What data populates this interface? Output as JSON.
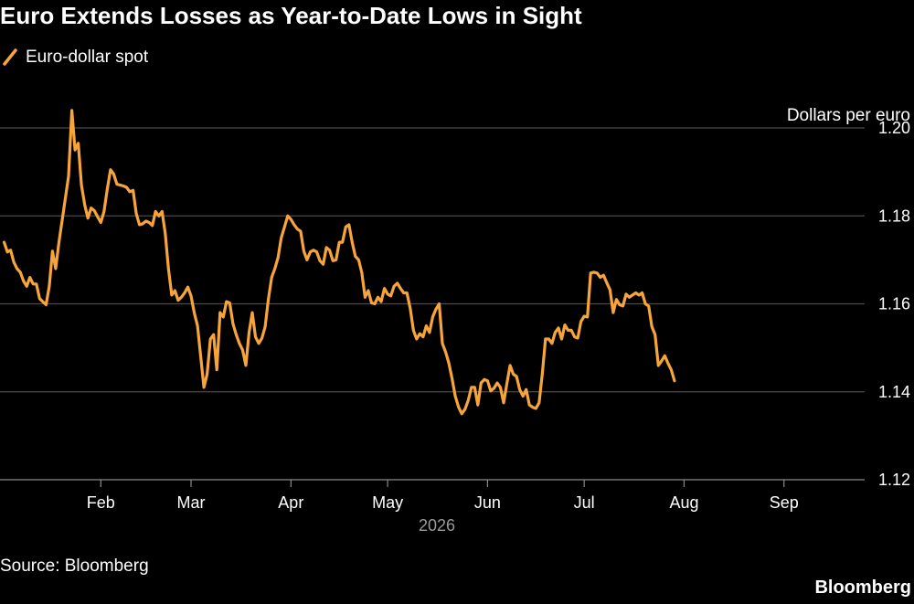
{
  "title": "Euro Extends Losses as Year-to-Date Lows in Sight",
  "source": "Source: Bloomberg",
  "brand": "Bloomberg",
  "colors": {
    "line": "#f7a53a",
    "grid": "#4a4a4a",
    "background": "#000000"
  },
  "chart_data": {
    "type": "line",
    "title": "Euro Extends Losses as Year-to-Date Lows in Sight",
    "ylabel": "Dollars per euro",
    "xlabel": "2026",
    "x_range": [
      "2026-01-01",
      "2026-09-30"
    ],
    "ylim": [
      1.12,
      1.2
    ],
    "yticks": [
      "1.20",
      "1.18",
      "1.16",
      "1.14",
      "1.12"
    ],
    "ytick_values": [
      1.2,
      1.18,
      1.16,
      1.14,
      1.12
    ],
    "xticks": [
      {
        "label": "Feb",
        "date": "2026-02-01"
      },
      {
        "label": "Mar",
        "date": "2026-03-01"
      },
      {
        "label": "Apr",
        "date": "2026-04-01"
      },
      {
        "label": "May",
        "date": "2026-05-01"
      },
      {
        "label": "Jun",
        "date": "2026-06-01"
      },
      {
        "label": "Jul",
        "date": "2026-07-01"
      },
      {
        "label": "Aug",
        "date": "2026-08-01"
      },
      {
        "label": "Sep",
        "date": "2026-09-01"
      }
    ],
    "grid": true,
    "legend_position": "top-left",
    "series": [
      {
        "name": "Euro-dollar spot",
        "color": "#f7a53a",
        "points": [
          [
            "2026-01-02",
            1.174
          ],
          [
            "2026-01-03",
            1.1718
          ],
          [
            "2026-01-04",
            1.1722
          ],
          [
            "2026-01-05",
            1.1695
          ],
          [
            "2026-01-06",
            1.168
          ],
          [
            "2026-01-07",
            1.1672
          ],
          [
            "2026-01-08",
            1.1652
          ],
          [
            "2026-01-09",
            1.164
          ],
          [
            "2026-01-10",
            1.166
          ],
          [
            "2026-01-11",
            1.1645
          ],
          [
            "2026-01-12",
            1.1645
          ],
          [
            "2026-01-13",
            1.1612
          ],
          [
            "2026-01-14",
            1.1605
          ],
          [
            "2026-01-15",
            1.1598
          ],
          [
            "2026-01-16",
            1.164
          ],
          [
            "2026-01-17",
            1.172
          ],
          [
            "2026-01-18",
            1.168
          ],
          [
            "2026-01-19",
            1.174
          ],
          [
            "2026-01-20",
            1.179
          ],
          [
            "2026-01-21",
            1.184
          ],
          [
            "2026-01-22",
            1.189
          ],
          [
            "2026-01-23",
            1.204
          ],
          [
            "2026-01-24",
            1.195
          ],
          [
            "2026-01-25",
            1.1965
          ],
          [
            "2026-01-26",
            1.187
          ],
          [
            "2026-01-27",
            1.1825
          ],
          [
            "2026-01-28",
            1.1795
          ],
          [
            "2026-01-29",
            1.1818
          ],
          [
            "2026-01-30",
            1.1812
          ],
          [
            "2026-01-31",
            1.1798
          ],
          [
            "2026-02-01",
            1.1785
          ],
          [
            "2026-02-02",
            1.181
          ],
          [
            "2026-02-03",
            1.186
          ],
          [
            "2026-02-04",
            1.1905
          ],
          [
            "2026-02-05",
            1.1895
          ],
          [
            "2026-02-06",
            1.1872
          ],
          [
            "2026-02-07",
            1.187
          ],
          [
            "2026-02-08",
            1.1868
          ],
          [
            "2026-02-09",
            1.1865
          ],
          [
            "2026-02-10",
            1.1855
          ],
          [
            "2026-02-11",
            1.1858
          ],
          [
            "2026-02-12",
            1.1805
          ],
          [
            "2026-02-13",
            1.178
          ],
          [
            "2026-02-14",
            1.1782
          ],
          [
            "2026-02-15",
            1.1788
          ],
          [
            "2026-02-16",
            1.1785
          ],
          [
            "2026-02-17",
            1.1778
          ],
          [
            "2026-02-18",
            1.181
          ],
          [
            "2026-02-19",
            1.18
          ],
          [
            "2026-02-20",
            1.181
          ],
          [
            "2026-02-21",
            1.176
          ],
          [
            "2026-02-22",
            1.168
          ],
          [
            "2026-02-23",
            1.162
          ],
          [
            "2026-02-24",
            1.163
          ],
          [
            "2026-02-25",
            1.1608
          ],
          [
            "2026-02-26",
            1.1615
          ],
          [
            "2026-02-27",
            1.1625
          ],
          [
            "2026-02-28",
            1.1638
          ],
          [
            "2026-03-01",
            1.1618
          ],
          [
            "2026-03-02",
            1.158
          ],
          [
            "2026-03-03",
            1.155
          ],
          [
            "2026-03-04",
            1.148
          ],
          [
            "2026-03-05",
            1.141
          ],
          [
            "2026-03-06",
            1.144
          ],
          [
            "2026-03-07",
            1.152
          ],
          [
            "2026-03-08",
            1.153
          ],
          [
            "2026-03-09",
            1.145
          ],
          [
            "2026-03-10",
            1.158
          ],
          [
            "2026-03-11",
            1.157
          ],
          [
            "2026-03-12",
            1.1605
          ],
          [
            "2026-03-13",
            1.1602
          ],
          [
            "2026-03-14",
            1.1555
          ],
          [
            "2026-03-15",
            1.153
          ],
          [
            "2026-03-16",
            1.151
          ],
          [
            "2026-03-17",
            1.1495
          ],
          [
            "2026-03-18",
            1.146
          ],
          [
            "2026-03-19",
            1.1535
          ],
          [
            "2026-03-20",
            1.158
          ],
          [
            "2026-03-21",
            1.1525
          ],
          [
            "2026-03-22",
            1.151
          ],
          [
            "2026-03-23",
            1.1522
          ],
          [
            "2026-03-24",
            1.1548
          ],
          [
            "2026-03-25",
            1.161
          ],
          [
            "2026-03-26",
            1.166
          ],
          [
            "2026-03-27",
            1.168
          ],
          [
            "2026-03-28",
            1.1705
          ],
          [
            "2026-03-29",
            1.175
          ],
          [
            "2026-03-30",
            1.1775
          ],
          [
            "2026-03-31",
            1.18
          ],
          [
            "2026-04-01",
            1.1792
          ],
          [
            "2026-04-02",
            1.178
          ],
          [
            "2026-04-03",
            1.177
          ],
          [
            "2026-04-04",
            1.1765
          ],
          [
            "2026-04-05",
            1.172
          ],
          [
            "2026-04-06",
            1.17
          ],
          [
            "2026-04-07",
            1.1718
          ],
          [
            "2026-04-08",
            1.1722
          ],
          [
            "2026-04-09",
            1.1718
          ],
          [
            "2026-04-10",
            1.1698
          ],
          [
            "2026-04-11",
            1.169
          ],
          [
            "2026-04-12",
            1.1728
          ],
          [
            "2026-04-13",
            1.1722
          ],
          [
            "2026-04-14",
            1.1698
          ],
          [
            "2026-04-15",
            1.17
          ],
          [
            "2026-04-16",
            1.174
          ],
          [
            "2026-04-17",
            1.174
          ],
          [
            "2026-04-18",
            1.1775
          ],
          [
            "2026-04-19",
            1.178
          ],
          [
            "2026-04-20",
            1.174
          ],
          [
            "2026-04-21",
            1.1708
          ],
          [
            "2026-04-22",
            1.17
          ],
          [
            "2026-04-23",
            1.167
          ],
          [
            "2026-04-24",
            1.1615
          ],
          [
            "2026-04-25",
            1.163
          ],
          [
            "2026-04-26",
            1.1602
          ],
          [
            "2026-04-27",
            1.16
          ],
          [
            "2026-04-28",
            1.1615
          ],
          [
            "2026-04-29",
            1.1605
          ],
          [
            "2026-04-30",
            1.1635
          ],
          [
            "2026-05-01",
            1.1622
          ],
          [
            "2026-05-02",
            1.1618
          ],
          [
            "2026-05-03",
            1.164
          ],
          [
            "2026-05-04",
            1.1647
          ],
          [
            "2026-05-05",
            1.1635
          ],
          [
            "2026-05-06",
            1.1625
          ],
          [
            "2026-05-07",
            1.1625
          ],
          [
            "2026-05-08",
            1.159
          ],
          [
            "2026-05-09",
            1.154
          ],
          [
            "2026-05-10",
            1.152
          ],
          [
            "2026-05-11",
            1.1532
          ],
          [
            "2026-05-12",
            1.1525
          ],
          [
            "2026-05-13",
            1.155
          ],
          [
            "2026-05-14",
            1.1535
          ],
          [
            "2026-05-15",
            1.157
          ],
          [
            "2026-05-16",
            1.1588
          ],
          [
            "2026-05-17",
            1.16
          ],
          [
            "2026-05-18",
            1.151
          ],
          [
            "2026-05-19",
            1.149
          ],
          [
            "2026-05-20",
            1.1465
          ],
          [
            "2026-05-21",
            1.143
          ],
          [
            "2026-05-22",
            1.139
          ],
          [
            "2026-05-23",
            1.1365
          ],
          [
            "2026-05-24",
            1.135
          ],
          [
            "2026-05-25",
            1.136
          ],
          [
            "2026-05-26",
            1.138
          ],
          [
            "2026-05-27",
            1.141
          ],
          [
            "2026-05-28",
            1.141
          ],
          [
            "2026-05-29",
            1.137
          ],
          [
            "2026-05-30",
            1.142
          ],
          [
            "2026-05-31",
            1.1428
          ],
          [
            "2026-06-01",
            1.1425
          ],
          [
            "2026-06-02",
            1.1402
          ],
          [
            "2026-06-03",
            1.1408
          ],
          [
            "2026-06-04",
            1.142
          ],
          [
            "2026-06-05",
            1.141
          ],
          [
            "2026-06-06",
            1.1375
          ],
          [
            "2026-06-07",
            1.1418
          ],
          [
            "2026-06-08",
            1.146
          ],
          [
            "2026-06-09",
            1.144
          ],
          [
            "2026-06-10",
            1.1435
          ],
          [
            "2026-06-11",
            1.1405
          ],
          [
            "2026-06-12",
            1.139
          ],
          [
            "2026-06-13",
            1.1405
          ],
          [
            "2026-06-14",
            1.137
          ],
          [
            "2026-06-15",
            1.1365
          ],
          [
            "2026-06-16",
            1.1362
          ],
          [
            "2026-06-17",
            1.1375
          ],
          [
            "2026-06-18",
            1.144
          ],
          [
            "2026-06-19",
            1.152
          ],
          [
            "2026-06-20",
            1.152
          ],
          [
            "2026-06-21",
            1.151
          ],
          [
            "2026-06-22",
            1.1535
          ],
          [
            "2026-06-23",
            1.1545
          ],
          [
            "2026-06-24",
            1.152
          ],
          [
            "2026-06-25",
            1.1552
          ],
          [
            "2026-06-26",
            1.154
          ],
          [
            "2026-06-27",
            1.154
          ],
          [
            "2026-06-28",
            1.1525
          ],
          [
            "2026-06-29",
            1.1522
          ],
          [
            "2026-06-30",
            1.156
          ],
          [
            "2026-07-01",
            1.1572
          ],
          [
            "2026-07-02",
            1.157
          ],
          [
            "2026-07-03",
            1.167
          ],
          [
            "2026-07-04",
            1.1672
          ],
          [
            "2026-07-05",
            1.167
          ],
          [
            "2026-07-06",
            1.166
          ],
          [
            "2026-07-07",
            1.1665
          ],
          [
            "2026-07-08",
            1.1648
          ],
          [
            "2026-07-09",
            1.1632
          ],
          [
            "2026-07-10",
            1.158
          ],
          [
            "2026-07-11",
            1.161
          ],
          [
            "2026-07-12",
            1.1598
          ],
          [
            "2026-07-13",
            1.1595
          ],
          [
            "2026-07-14",
            1.1622
          ],
          [
            "2026-07-15",
            1.1615
          ],
          [
            "2026-07-16",
            1.162
          ],
          [
            "2026-07-17",
            1.1625
          ],
          [
            "2026-07-18",
            1.162
          ],
          [
            "2026-07-19",
            1.1625
          ],
          [
            "2026-07-20",
            1.16
          ],
          [
            "2026-07-21",
            1.1595
          ],
          [
            "2026-07-22",
            1.1548
          ],
          [
            "2026-07-23",
            1.153
          ],
          [
            "2026-07-24",
            1.146
          ],
          [
            "2026-07-25",
            1.147
          ],
          [
            "2026-07-26",
            1.1482
          ],
          [
            "2026-07-27",
            1.1465
          ],
          [
            "2026-07-28",
            1.145
          ],
          [
            "2026-07-29",
            1.1425
          ]
        ]
      }
    ]
  }
}
